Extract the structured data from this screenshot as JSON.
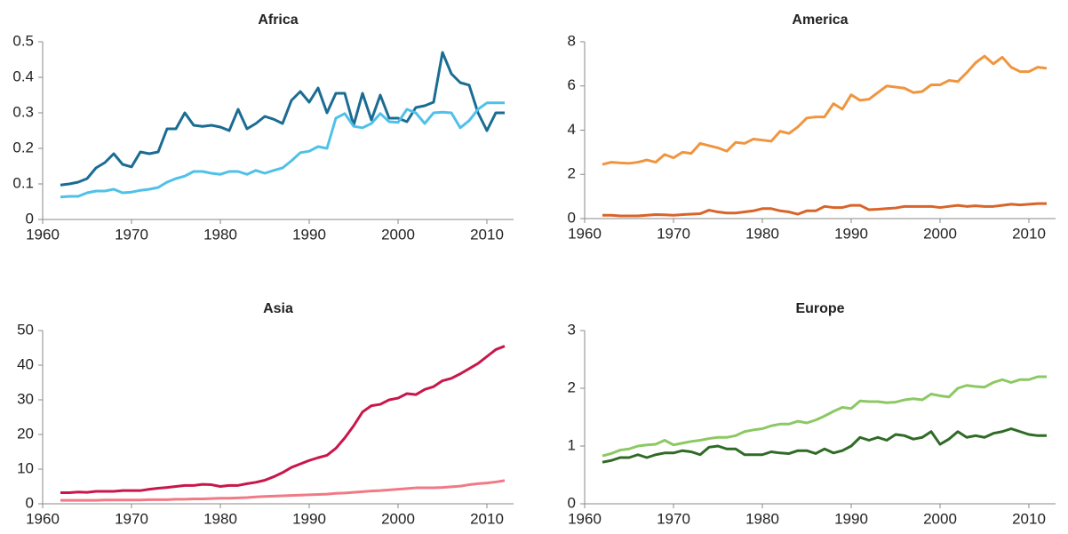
{
  "chart_data": [
    {
      "type": "line",
      "title": "Africa",
      "x": [
        1962,
        1963,
        1964,
        1965,
        1966,
        1967,
        1968,
        1969,
        1970,
        1971,
        1972,
        1973,
        1974,
        1975,
        1976,
        1977,
        1978,
        1979,
        1980,
        1981,
        1982,
        1983,
        1984,
        1985,
        1986,
        1987,
        1988,
        1989,
        1990,
        1991,
        1992,
        1993,
        1994,
        1995,
        1996,
        1997,
        1998,
        1999,
        2000,
        2001,
        2002,
        2003,
        2004,
        2005,
        2006,
        2007,
        2008,
        2009,
        2010,
        2011,
        2012
      ],
      "series": [
        {
          "color": "#1a6c93",
          "values": [
            0.097,
            0.1,
            0.105,
            0.115,
            0.145,
            0.16,
            0.185,
            0.155,
            0.148,
            0.19,
            0.185,
            0.19,
            0.255,
            0.255,
            0.3,
            0.265,
            0.262,
            0.265,
            0.26,
            0.25,
            0.31,
            0.255,
            0.27,
            0.29,
            0.282,
            0.27,
            0.335,
            0.36,
            0.33,
            0.37,
            0.3,
            0.355,
            0.355,
            0.265,
            0.355,
            0.28,
            0.35,
            0.285,
            0.285,
            0.275,
            0.315,
            0.32,
            0.33,
            0.47,
            0.41,
            0.385,
            0.378,
            0.3,
            0.25,
            0.3,
            0.3
          ]
        },
        {
          "color": "#4fc1e8",
          "values": [
            0.063,
            0.065,
            0.065,
            0.075,
            0.08,
            0.08,
            0.085,
            0.075,
            0.077,
            0.082,
            0.085,
            0.09,
            0.105,
            0.115,
            0.122,
            0.135,
            0.135,
            0.13,
            0.127,
            0.135,
            0.135,
            0.127,
            0.138,
            0.13,
            0.138,
            0.145,
            0.165,
            0.188,
            0.192,
            0.205,
            0.2,
            0.285,
            0.298,
            0.262,
            0.258,
            0.27,
            0.298,
            0.275,
            0.273,
            0.31,
            0.3,
            0.27,
            0.3,
            0.302,
            0.3,
            0.258,
            0.278,
            0.31,
            0.328,
            0.328,
            0.328
          ]
        }
      ],
      "xlim": [
        1960,
        2013
      ],
      "xticks": [
        1960,
        1970,
        1980,
        1990,
        2000,
        2010
      ],
      "ylim": [
        0,
        0.5
      ],
      "yticks": [
        0,
        0.1,
        0.2,
        0.3,
        0.4,
        0.5
      ]
    },
    {
      "type": "line",
      "title": "America",
      "x": [
        1962,
        1963,
        1964,
        1965,
        1966,
        1967,
        1968,
        1969,
        1970,
        1971,
        1972,
        1973,
        1974,
        1975,
        1976,
        1977,
        1978,
        1979,
        1980,
        1981,
        1982,
        1983,
        1984,
        1985,
        1986,
        1987,
        1988,
        1989,
        1990,
        1991,
        1992,
        1993,
        1994,
        1995,
        1996,
        1997,
        1998,
        1999,
        2000,
        2001,
        2002,
        2003,
        2004,
        2005,
        2006,
        2007,
        2008,
        2009,
        2010,
        2011,
        2012
      ],
      "series": [
        {
          "color": "#f0953f",
          "values": [
            2.45,
            2.55,
            2.52,
            2.5,
            2.55,
            2.65,
            2.55,
            2.9,
            2.75,
            3.0,
            2.95,
            3.4,
            3.3,
            3.2,
            3.05,
            3.45,
            3.4,
            3.6,
            3.55,
            3.5,
            3.95,
            3.85,
            4.15,
            4.55,
            4.6,
            4.6,
            5.2,
            4.95,
            5.6,
            5.35,
            5.4,
            5.7,
            6.0,
            5.95,
            5.9,
            5.7,
            5.75,
            6.05,
            6.05,
            6.25,
            6.2,
            6.6,
            7.05,
            7.35,
            7.0,
            7.3,
            6.85,
            6.65,
            6.65,
            6.85,
            6.8
          ]
        },
        {
          "color": "#d9642a",
          "values": [
            0.15,
            0.15,
            0.12,
            0.12,
            0.12,
            0.15,
            0.18,
            0.17,
            0.15,
            0.18,
            0.2,
            0.22,
            0.38,
            0.3,
            0.25,
            0.25,
            0.3,
            0.35,
            0.45,
            0.45,
            0.35,
            0.3,
            0.2,
            0.35,
            0.35,
            0.55,
            0.5,
            0.5,
            0.6,
            0.6,
            0.4,
            0.42,
            0.45,
            0.48,
            0.55,
            0.55,
            0.55,
            0.55,
            0.5,
            0.55,
            0.6,
            0.55,
            0.58,
            0.55,
            0.55,
            0.6,
            0.65,
            0.62,
            0.65,
            0.68,
            0.68
          ]
        }
      ],
      "xlim": [
        1960,
        2013
      ],
      "xticks": [
        1960,
        1970,
        1980,
        1990,
        2000,
        2010
      ],
      "ylim": [
        0,
        8
      ],
      "yticks": [
        0,
        2,
        4,
        6,
        8
      ]
    },
    {
      "type": "line",
      "title": "Asia",
      "x": [
        1962,
        1963,
        1964,
        1965,
        1966,
        1967,
        1968,
        1969,
        1970,
        1971,
        1972,
        1973,
        1974,
        1975,
        1976,
        1977,
        1978,
        1979,
        1980,
        1981,
        1982,
        1983,
        1984,
        1985,
        1986,
        1987,
        1988,
        1989,
        1990,
        1991,
        1992,
        1993,
        1994,
        1995,
        1996,
        1997,
        1998,
        1999,
        2000,
        2001,
        2002,
        2003,
        2004,
        2005,
        2006,
        2007,
        2008,
        2009,
        2010,
        2011,
        2012
      ],
      "series": [
        {
          "color": "#c8174a",
          "values": [
            3.2,
            3.2,
            3.4,
            3.3,
            3.6,
            3.6,
            3.6,
            3.8,
            3.8,
            3.8,
            4.2,
            4.5,
            4.7,
            5.0,
            5.3,
            5.3,
            5.6,
            5.5,
            5.0,
            5.3,
            5.3,
            5.8,
            6.2,
            6.8,
            7.8,
            9.0,
            10.5,
            11.5,
            12.5,
            13.3,
            14.0,
            16.0,
            19.0,
            22.5,
            26.5,
            28.3,
            28.7,
            30.0,
            30.5,
            31.8,
            31.5,
            33.0,
            33.8,
            35.5,
            36.2,
            37.5,
            39.0,
            40.5,
            42.5,
            44.5,
            45.5
          ]
        },
        {
          "color": "#f07a86",
          "values": [
            1,
            1,
            1,
            1,
            1,
            1.1,
            1.1,
            1.1,
            1.1,
            1.1,
            1.2,
            1.2,
            1.2,
            1.3,
            1.3,
            1.4,
            1.4,
            1.5,
            1.6,
            1.6,
            1.7,
            1.8,
            2.0,
            2.1,
            2.2,
            2.3,
            2.4,
            2.5,
            2.6,
            2.7,
            2.8,
            3.0,
            3.1,
            3.3,
            3.5,
            3.7,
            3.8,
            4.0,
            4.2,
            4.4,
            4.6,
            4.6,
            4.6,
            4.7,
            4.9,
            5.1,
            5.5,
            5.8,
            6.0,
            6.3,
            6.7
          ]
        }
      ],
      "xlim": [
        1960,
        2013
      ],
      "xticks": [
        1960,
        1970,
        1980,
        1990,
        2000,
        2010
      ],
      "ylim": [
        0,
        50
      ],
      "yticks": [
        0,
        10,
        20,
        30,
        40,
        50
      ]
    },
    {
      "type": "line",
      "title": "Europe",
      "x": [
        1962,
        1963,
        1964,
        1965,
        1966,
        1967,
        1968,
        1969,
        1970,
        1971,
        1972,
        1973,
        1974,
        1975,
        1976,
        1977,
        1978,
        1979,
        1980,
        1981,
        1982,
        1983,
        1984,
        1985,
        1986,
        1987,
        1988,
        1989,
        1990,
        1991,
        1992,
        1993,
        1994,
        1995,
        1996,
        1997,
        1998,
        1999,
        2000,
        2001,
        2002,
        2003,
        2004,
        2005,
        2006,
        2007,
        2008,
        2009,
        2010,
        2011,
        2012
      ],
      "series": [
        {
          "color": "#8cc863",
          "values": [
            0.83,
            0.87,
            0.93,
            0.95,
            1.0,
            1.02,
            1.03,
            1.1,
            1.02,
            1.05,
            1.08,
            1.1,
            1.13,
            1.15,
            1.15,
            1.18,
            1.25,
            1.28,
            1.3,
            1.35,
            1.38,
            1.38,
            1.43,
            1.4,
            1.45,
            1.52,
            1.6,
            1.67,
            1.65,
            1.78,
            1.77,
            1.77,
            1.75,
            1.76,
            1.8,
            1.82,
            1.8,
            1.9,
            1.87,
            1.85,
            2.0,
            2.05,
            2.03,
            2.02,
            2.1,
            2.15,
            2.1,
            2.15,
            2.15,
            2.2,
            2.2
          ]
        },
        {
          "color": "#2f6b25",
          "values": [
            0.72,
            0.75,
            0.8,
            0.8,
            0.85,
            0.8,
            0.85,
            0.88,
            0.88,
            0.92,
            0.9,
            0.85,
            0.98,
            1.0,
            0.95,
            0.95,
            0.85,
            0.85,
            0.85,
            0.9,
            0.88,
            0.87,
            0.92,
            0.92,
            0.87,
            0.95,
            0.88,
            0.92,
            1.0,
            1.15,
            1.1,
            1.15,
            1.1,
            1.2,
            1.18,
            1.12,
            1.15,
            1.25,
            1.03,
            1.12,
            1.25,
            1.15,
            1.18,
            1.15,
            1.22,
            1.25,
            1.3,
            1.25,
            1.2,
            1.18,
            1.18
          ]
        }
      ],
      "xlim": [
        1960,
        2013
      ],
      "xticks": [
        1960,
        1970,
        1980,
        1990,
        2000,
        2010
      ],
      "ylim": [
        0,
        3
      ],
      "yticks": [
        0,
        1,
        2,
        3
      ]
    }
  ]
}
